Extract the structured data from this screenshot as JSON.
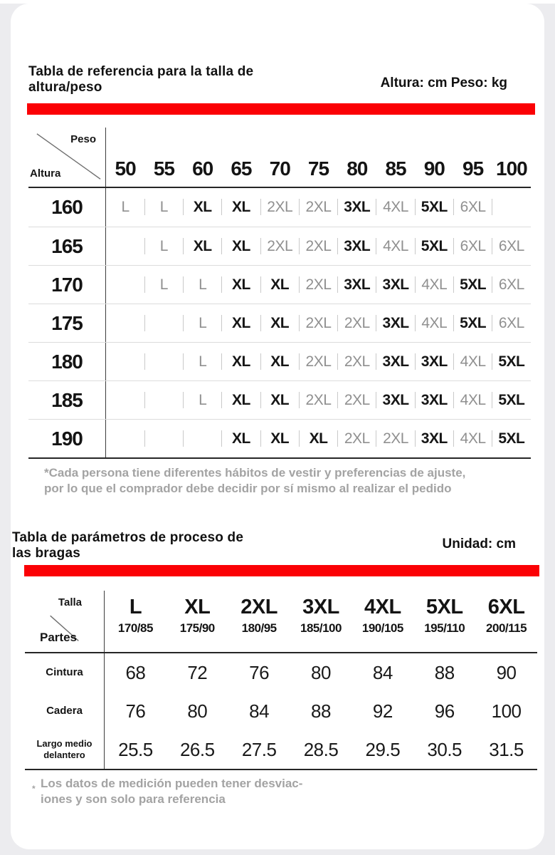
{
  "colors": {
    "accent_red": "#FB0105",
    "page_bg": "#ECECEF",
    "gray_size": "#909090",
    "dark_size": "#161616"
  },
  "section1": {
    "title": "Tabla de referencia para la talla de\naltura/peso",
    "unit_label": "Altura: cm Peso: kg",
    "footnote": "*Cada persona tiene diferentes hábitos de vestir y preferencias de ajuste,\npor lo que el comprador debe decidir por sí mismo al realizar el pedido",
    "table": {
      "corner_top": "Peso",
      "corner_bottom": "Altura",
      "weight_headers": [
        "50",
        "55",
        "60",
        "65",
        "70",
        "75",
        "80",
        "85",
        "90",
        "95",
        "100"
      ],
      "rows": [
        {
          "height": "160",
          "sizes": [
            {
              "t": "L",
              "gray": true
            },
            {
              "t": "L",
              "gray": true
            },
            {
              "t": "XL"
            },
            {
              "t": "XL"
            },
            {
              "t": "2XL",
              "gray": true
            },
            {
              "t": "2XL",
              "gray": true
            },
            {
              "t": "3XL"
            },
            {
              "t": "4XL",
              "gray": true
            },
            {
              "t": "5XL"
            },
            {
              "t": "6XL",
              "gray": true
            },
            {
              "t": ""
            }
          ]
        },
        {
          "height": "165",
          "sizes": [
            {
              "t": ""
            },
            {
              "t": "L",
              "gray": true
            },
            {
              "t": "XL"
            },
            {
              "t": "XL"
            },
            {
              "t": "2XL",
              "gray": true
            },
            {
              "t": "2XL",
              "gray": true
            },
            {
              "t": "3XL"
            },
            {
              "t": "4XL",
              "gray": true
            },
            {
              "t": "5XL"
            },
            {
              "t": "6XL",
              "gray": true
            },
            {
              "t": "6XL",
              "gray": true
            }
          ]
        },
        {
          "height": "170",
          "sizes": [
            {
              "t": ""
            },
            {
              "t": "L",
              "gray": true
            },
            {
              "t": "L",
              "gray": true
            },
            {
              "t": "XL"
            },
            {
              "t": "XL"
            },
            {
              "t": "2XL",
              "gray": true
            },
            {
              "t": "3XL"
            },
            {
              "t": "3XL"
            },
            {
              "t": "4XL",
              "gray": true
            },
            {
              "t": "5XL"
            },
            {
              "t": "6XL",
              "gray": true
            }
          ]
        },
        {
          "height": "175",
          "sizes": [
            {
              "t": ""
            },
            {
              "t": ""
            },
            {
              "t": "L",
              "gray": true
            },
            {
              "t": "XL"
            },
            {
              "t": "XL"
            },
            {
              "t": "2XL",
              "gray": true
            },
            {
              "t": "2XL",
              "gray": true
            },
            {
              "t": "3XL"
            },
            {
              "t": "4XL",
              "gray": true
            },
            {
              "t": "5XL"
            },
            {
              "t": "6XL",
              "gray": true
            }
          ]
        },
        {
          "height": "180",
          "sizes": [
            {
              "t": ""
            },
            {
              "t": ""
            },
            {
              "t": "L",
              "gray": true
            },
            {
              "t": "XL"
            },
            {
              "t": "XL"
            },
            {
              "t": "2XL",
              "gray": true
            },
            {
              "t": "2XL",
              "gray": true
            },
            {
              "t": "3XL"
            },
            {
              "t": "3XL"
            },
            {
              "t": "4XL",
              "gray": true
            },
            {
              "t": "5XL"
            }
          ]
        },
        {
          "height": "185",
          "sizes": [
            {
              "t": ""
            },
            {
              "t": ""
            },
            {
              "t": "L",
              "gray": true
            },
            {
              "t": "XL"
            },
            {
              "t": "XL"
            },
            {
              "t": "2XL",
              "gray": true
            },
            {
              "t": "2XL",
              "gray": true
            },
            {
              "t": "3XL"
            },
            {
              "t": "3XL"
            },
            {
              "t": "4XL",
              "gray": true
            },
            {
              "t": "5XL"
            }
          ]
        },
        {
          "height": "190",
          "sizes": [
            {
              "t": ""
            },
            {
              "t": ""
            },
            {
              "t": ""
            },
            {
              "t": "XL"
            },
            {
              "t": "XL"
            },
            {
              "t": "XL"
            },
            {
              "t": "2XL",
              "gray": true
            },
            {
              "t": "2XL",
              "gray": true
            },
            {
              "t": "3XL"
            },
            {
              "t": "4XL",
              "gray": true
            },
            {
              "t": "5XL"
            }
          ]
        }
      ]
    }
  },
  "section2": {
    "title": "Tabla de parámetros de proceso de\nlas bragas",
    "unit_label": "Unidad: cm",
    "footnote_marker": "*",
    "footnote": "Los datos de medición pueden tener desviac-\niones y son solo para referencia",
    "table": {
      "corner_top": "Talla",
      "corner_bottom": "Partes",
      "columns": [
        {
          "size": "L",
          "hw": "170/85"
        },
        {
          "size": "XL",
          "hw": "175/90"
        },
        {
          "size": "2XL",
          "hw": "180/95"
        },
        {
          "size": "3XL",
          "hw": "185/100"
        },
        {
          "size": "4XL",
          "hw": "190/105"
        },
        {
          "size": "5XL",
          "hw": "195/110"
        },
        {
          "size": "6XL",
          "hw": "200/115"
        }
      ],
      "rows": [
        {
          "label": "Cintura",
          "values": [
            "68",
            "72",
            "76",
            "80",
            "84",
            "88",
            "90"
          ]
        },
        {
          "label": "Cadera",
          "values": [
            "76",
            "80",
            "84",
            "88",
            "92",
            "96",
            "100"
          ]
        },
        {
          "label": "Largo medio\ndelantero",
          "values": [
            "25.5",
            "26.5",
            "27.5",
            "28.5",
            "29.5",
            "30.5",
            "31.5"
          ]
        }
      ]
    }
  }
}
